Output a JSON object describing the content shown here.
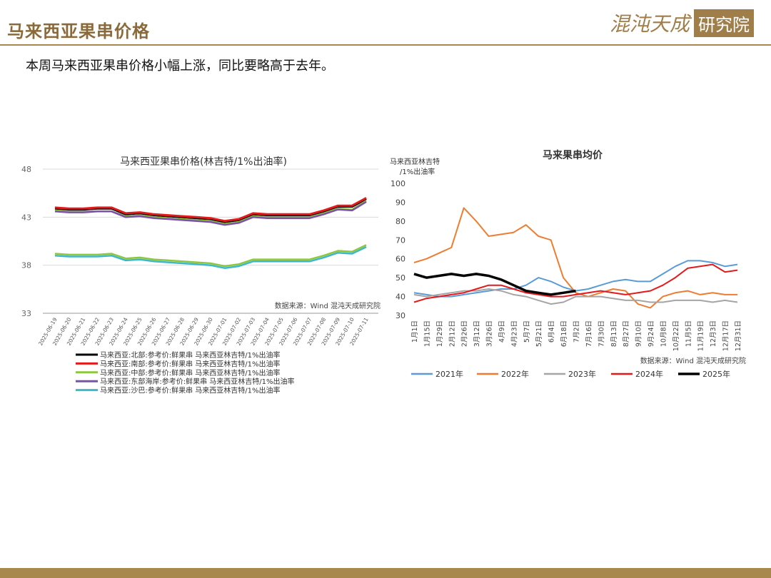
{
  "header": {
    "title": "马来西亚果串价格",
    "logo_text": "混沌天成",
    "logo_box_text": "研究院"
  },
  "subtitle": "本周马来西亚果串价格小幅上涨，同比要略高于去年。",
  "colors": {
    "accent": "#a8884c",
    "north": "#000000",
    "south": "#e31a1c",
    "central": "#8dc63f",
    "east": "#7b52a8",
    "sabah": "#3eb8c8",
    "y2021": "#5b9bd5",
    "y2022": "#ed7d31",
    "y2023": "#a5a5a5",
    "y2024": "#e31a1c",
    "y2025": "#000000"
  },
  "chart_data": [
    {
      "type": "line",
      "title": "马来西亚果串价格(林吉特/1%出油率)",
      "source": "数据来源：Wind 混沌天成研究院",
      "ylim": [
        33,
        48
      ],
      "yticks": [
        "48",
        "43",
        "38",
        "33"
      ],
      "x": [
        "2025-06-19",
        "2025-06-20",
        "2025-06-21",
        "2025-06-22",
        "2025-06-23",
        "2025-06-24",
        "2025-06-25",
        "2025-06-26",
        "2025-06-27",
        "2025-06-28",
        "2025-06-29",
        "2025-06-30",
        "2025-07-01",
        "2025-07-02",
        "2025-07-03",
        "2025-07-04",
        "2025-07-05",
        "2025-07-06",
        "2025-07-07",
        "2025-07-08",
        "2025-07-09",
        "2025-07-10",
        "2025-07-11"
      ],
      "series": [
        {
          "name": "马来西亚:北部:参考价:鲜果串 马来西亚林吉特/1%出油率",
          "color": "north",
          "values": [
            43.9,
            43.8,
            43.8,
            43.9,
            43.9,
            43.3,
            43.4,
            43.2,
            43.1,
            43.0,
            42.9,
            42.8,
            42.5,
            42.7,
            43.3,
            43.2,
            43.2,
            43.2,
            43.2,
            43.6,
            44.1,
            44.1,
            44.9
          ]
        },
        {
          "name": "马来西亚:南部:参考价:鲜果串 马来西亚林吉特/1%出油率",
          "color": "south",
          "values": [
            44.0,
            43.9,
            43.9,
            44.0,
            44.0,
            43.4,
            43.5,
            43.3,
            43.2,
            43.1,
            43.0,
            42.9,
            42.6,
            42.8,
            43.4,
            43.3,
            43.3,
            43.3,
            43.3,
            43.7,
            44.2,
            44.2,
            45.0
          ]
        },
        {
          "name": "马来西亚:中部:参考价:鲜果串 马来西亚林吉特/1%出油率",
          "color": "central",
          "values": [
            43.7,
            43.6,
            43.6,
            43.6,
            43.6,
            43.1,
            43.2,
            43.0,
            42.9,
            42.8,
            42.7,
            42.6,
            42.3,
            42.5,
            43.1,
            43.0,
            43.0,
            43.0,
            43.0,
            43.4,
            43.9,
            43.8,
            44.7
          ]
        },
        {
          "name": "马来西亚:东部海岸:参考价:鲜果串 马来西亚林吉特/1%出油率",
          "color": "east",
          "values": [
            43.6,
            43.5,
            43.5,
            43.6,
            43.6,
            43.0,
            43.1,
            42.9,
            42.8,
            42.7,
            42.6,
            42.5,
            42.2,
            42.4,
            43.0,
            42.9,
            42.9,
            42.9,
            42.9,
            43.3,
            43.8,
            43.7,
            44.6
          ]
        },
        {
          "name": "马来西亚:沙巴:参考价:鲜果串 马来西亚林吉特/1%出油率",
          "color": "sabah",
          "values": [
            39.0,
            38.9,
            38.9,
            38.9,
            39.0,
            38.5,
            38.6,
            38.4,
            38.3,
            38.2,
            38.1,
            38.0,
            37.7,
            37.9,
            38.4,
            38.4,
            38.4,
            38.4,
            38.4,
            38.8,
            39.3,
            39.2,
            39.9
          ]
        },
        {
          "name": "",
          "color": "central",
          "values": [
            39.2,
            39.1,
            39.1,
            39.1,
            39.2,
            38.7,
            38.8,
            38.6,
            38.5,
            38.4,
            38.3,
            38.2,
            37.9,
            38.1,
            38.6,
            38.6,
            38.6,
            38.6,
            38.6,
            39.0,
            39.5,
            39.4,
            40.1
          ]
        }
      ],
      "legend_position": "bottom"
    },
    {
      "type": "line",
      "title": "马来果串均价",
      "yunit_line1": "马来西亚林吉特",
      "yunit_line2": "/1%出油率",
      "source": "数据来源：Wind 混沌天成研究院",
      "ylim": [
        30,
        100
      ],
      "yticks": [
        "100",
        "90",
        "80",
        "70",
        "60",
        "50",
        "40",
        "30"
      ],
      "xticks": [
        "1月1日",
        "1月15日",
        "1月29日",
        "2月12日",
        "2月26日",
        "3月12日",
        "3月26日",
        "4月9日",
        "4月23日",
        "5月7日",
        "5月21日",
        "6月4日",
        "6月18日",
        "7月2日",
        "7月16日",
        "7月30日",
        "8月13日",
        "8月27日",
        "9月10日",
        "9月24日",
        "10月8日",
        "10月22日",
        "11月5日",
        "11月19日",
        "12月3日",
        "12月17日",
        "12月31日"
      ],
      "series": [
        {
          "name": "2021年",
          "color": "y2021",
          "values": [
            42,
            41,
            40,
            40,
            41,
            42,
            43,
            44,
            44,
            46,
            50,
            48,
            45,
            43,
            44,
            46,
            48,
            49,
            48,
            48,
            52,
            56,
            59,
            59,
            58,
            56,
            57
          ]
        },
        {
          "name": "2022年",
          "color": "y2022",
          "values": [
            58,
            60,
            63,
            66,
            87,
            80,
            72,
            73,
            74,
            78,
            72,
            70,
            50,
            42,
            40,
            42,
            44,
            43,
            36,
            34,
            40,
            42,
            43,
            41,
            42,
            41,
            41
          ]
        },
        {
          "name": "2023年",
          "color": "y2023",
          "values": [
            41,
            40,
            41,
            42,
            43,
            43,
            44,
            43,
            41,
            40,
            38,
            36,
            37,
            40,
            40,
            40,
            39,
            38,
            38,
            37,
            37,
            38,
            38,
            38,
            37,
            38,
            37
          ]
        },
        {
          "name": "2024年",
          "color": "y2024",
          "values": [
            37,
            39,
            40,
            41,
            42,
            44,
            46,
            46,
            44,
            42,
            41,
            40,
            40,
            41,
            42,
            43,
            42,
            41,
            42,
            43,
            46,
            50,
            55,
            56,
            57,
            53,
            54
          ]
        },
        {
          "name": "2025年",
          "color": "y2025",
          "values": [
            52,
            50,
            51,
            52,
            51,
            52,
            51,
            49,
            46,
            43,
            42,
            41,
            42,
            43
          ]
        }
      ],
      "legend_position": "bottom"
    }
  ]
}
